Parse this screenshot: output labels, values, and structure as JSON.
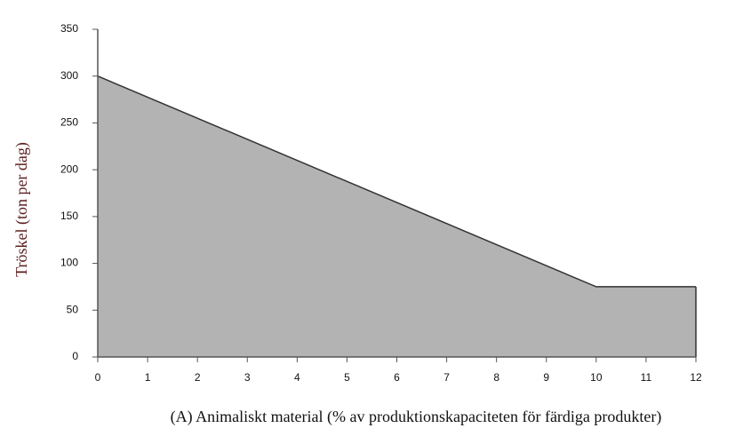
{
  "chart_data": {
    "type": "area",
    "x": [
      0,
      10,
      12
    ],
    "values": [
      300,
      75,
      75
    ],
    "color": "#b3b3b3",
    "line_color": "#333333",
    "xlim": [
      0,
      12
    ],
    "xticks": [
      0,
      1,
      2,
      3,
      4,
      5,
      6,
      7,
      8,
      9,
      10,
      11,
      12
    ],
    "ylim": [
      0,
      350
    ],
    "yticks": [
      0,
      50,
      100,
      150,
      200,
      250,
      300,
      350
    ],
    "y_label": "Tröskel (ton per dag)",
    "x_label": "(A) Animaliskt material (% av produktionskapaciteten för färdiga produkter)",
    "grid": false
  }
}
